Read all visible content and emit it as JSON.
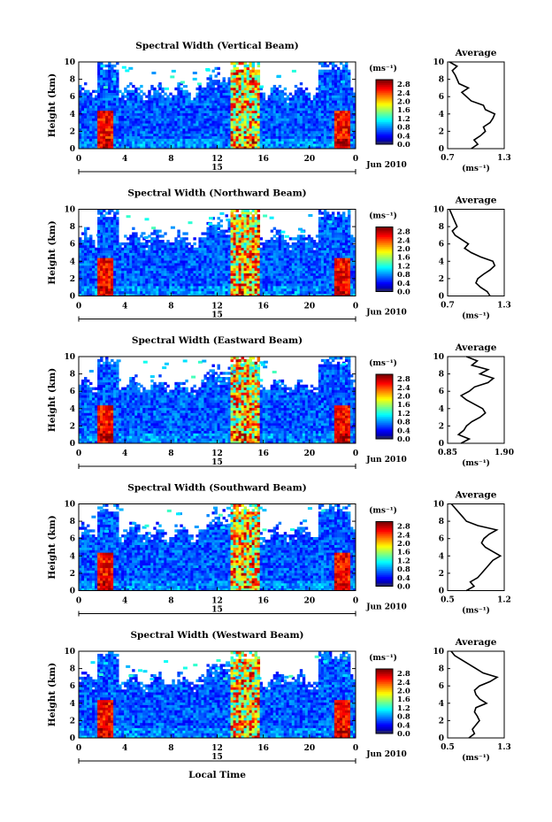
{
  "chart_data": {
    "type": "heatmap",
    "common": {
      "x_axis": {
        "range": [
          0,
          24
        ],
        "ticks": [
          "0",
          "4",
          "8",
          "12",
          "16",
          "20",
          "0"
        ],
        "date_label": "15",
        "date_suffix": "Jun 2010"
      },
      "y_axis": {
        "label": "Height (km)",
        "range": [
          0,
          10
        ],
        "ticks": [
          "0",
          "2",
          "4",
          "6",
          "8",
          "10"
        ]
      },
      "colorbar": {
        "unit": "(ms⁻¹)",
        "ticks": [
          "0.0",
          "0.4",
          "0.8",
          "1.2",
          "1.6",
          "2.0",
          "2.4",
          "2.8"
        ],
        "range": [
          0,
          3.0
        ]
      },
      "xlabel": "Local Time",
      "profile_title": "Average",
      "profile_xlabel": "(ms⁻¹)"
    },
    "panels": [
      {
        "title": "Spectral Width (Vertical Beam)",
        "profile_xticks": [
          "0.7",
          "1.3"
        ],
        "profile_xlim": [
          0.7,
          1.3
        ],
        "profile": [
          [
            0,
            0.95
          ],
          [
            0.5,
            1.02
          ],
          [
            1,
            0.98
          ],
          [
            1.5,
            1.05
          ],
          [
            2,
            1.1
          ],
          [
            2.5,
            1.08
          ],
          [
            3,
            1.15
          ],
          [
            3.5,
            1.18
          ],
          [
            4,
            1.2
          ],
          [
            4.5,
            1.1
          ],
          [
            5,
            1.08
          ],
          [
            5.5,
            0.95
          ],
          [
            6,
            0.9
          ],
          [
            6.5,
            0.85
          ],
          [
            7,
            0.92
          ],
          [
            7.5,
            0.82
          ],
          [
            8,
            0.8
          ],
          [
            8.5,
            0.78
          ],
          [
            9,
            0.75
          ],
          [
            9.5,
            0.8
          ],
          [
            10,
            0.72
          ]
        ]
      },
      {
        "title": "Spectral Width (Northward Beam)",
        "profile_xticks": [
          "0.7",
          "1.3"
        ],
        "profile_xlim": [
          0.7,
          1.3
        ],
        "profile": [
          [
            0,
            1.15
          ],
          [
            0.5,
            1.12
          ],
          [
            1,
            1.05
          ],
          [
            1.5,
            1.0
          ],
          [
            2,
            1.02
          ],
          [
            2.5,
            1.08
          ],
          [
            3,
            1.15
          ],
          [
            3.5,
            1.2
          ],
          [
            4,
            1.18
          ],
          [
            4.5,
            1.05
          ],
          [
            5,
            0.95
          ],
          [
            5.5,
            0.88
          ],
          [
            6,
            0.92
          ],
          [
            6.5,
            0.85
          ],
          [
            7,
            0.78
          ],
          [
            7.5,
            0.75
          ],
          [
            8,
            0.8
          ],
          [
            8.5,
            0.78
          ],
          [
            9,
            0.76
          ],
          [
            9.5,
            0.74
          ],
          [
            10,
            0.72
          ]
        ]
      },
      {
        "title": "Spectral Width (Eastward Beam)",
        "profile_xticks": [
          "0.85",
          "1.90"
        ],
        "profile_xlim": [
          0.85,
          1.9
        ],
        "profile": [
          [
            0,
            1.1
          ],
          [
            0.5,
            1.25
          ],
          [
            1,
            1.05
          ],
          [
            1.5,
            1.15
          ],
          [
            2,
            1.2
          ],
          [
            2.5,
            1.3
          ],
          [
            3,
            1.45
          ],
          [
            3.5,
            1.55
          ],
          [
            4,
            1.5
          ],
          [
            4.5,
            1.35
          ],
          [
            5,
            1.2
          ],
          [
            5.5,
            1.1
          ],
          [
            6,
            1.25
          ],
          [
            6.5,
            1.35
          ],
          [
            7,
            1.6
          ],
          [
            7.5,
            1.7
          ],
          [
            8,
            1.45
          ],
          [
            8.5,
            1.6
          ],
          [
            9,
            1.3
          ],
          [
            9.5,
            1.4
          ],
          [
            10,
            1.2
          ]
        ]
      },
      {
        "title": "Spectral Width (Southward Beam)",
        "profile_xticks": [
          "0.5",
          "1.2"
        ],
        "profile_xlim": [
          0.5,
          1.25
        ],
        "profile": [
          [
            0,
            0.75
          ],
          [
            0.5,
            0.85
          ],
          [
            1,
            0.8
          ],
          [
            1.5,
            0.9
          ],
          [
            2,
            0.95
          ],
          [
            2.5,
            1.0
          ],
          [
            3,
            1.05
          ],
          [
            3.5,
            1.1
          ],
          [
            4,
            1.2
          ],
          [
            4.5,
            1.1
          ],
          [
            5,
            1.0
          ],
          [
            5.5,
            0.95
          ],
          [
            6,
            0.98
          ],
          [
            6.5,
            1.05
          ],
          [
            7,
            1.15
          ],
          [
            7.5,
            0.9
          ],
          [
            8,
            0.75
          ],
          [
            8.5,
            0.7
          ],
          [
            9,
            0.65
          ],
          [
            9.5,
            0.6
          ],
          [
            10,
            0.55
          ]
        ]
      },
      {
        "title": "Spectral Width (Westward Beam)",
        "profile_xticks": [
          "0.5",
          "1.3"
        ],
        "profile_xlim": [
          0.5,
          1.3
        ],
        "profile": [
          [
            0,
            0.8
          ],
          [
            0.5,
            0.88
          ],
          [
            1,
            0.85
          ],
          [
            1.5,
            0.9
          ],
          [
            2,
            0.95
          ],
          [
            2.5,
            0.92
          ],
          [
            3,
            0.88
          ],
          [
            3.5,
            0.9
          ],
          [
            4,
            1.05
          ],
          [
            4.5,
            0.95
          ],
          [
            5,
            0.9
          ],
          [
            5.5,
            0.88
          ],
          [
            6,
            0.95
          ],
          [
            6.5,
            1.1
          ],
          [
            7,
            1.2
          ],
          [
            7.5,
            1.0
          ],
          [
            8,
            0.9
          ],
          [
            8.5,
            0.8
          ],
          [
            9,
            0.7
          ],
          [
            9.5,
            0.6
          ],
          [
            10,
            0.55
          ]
        ]
      }
    ]
  }
}
